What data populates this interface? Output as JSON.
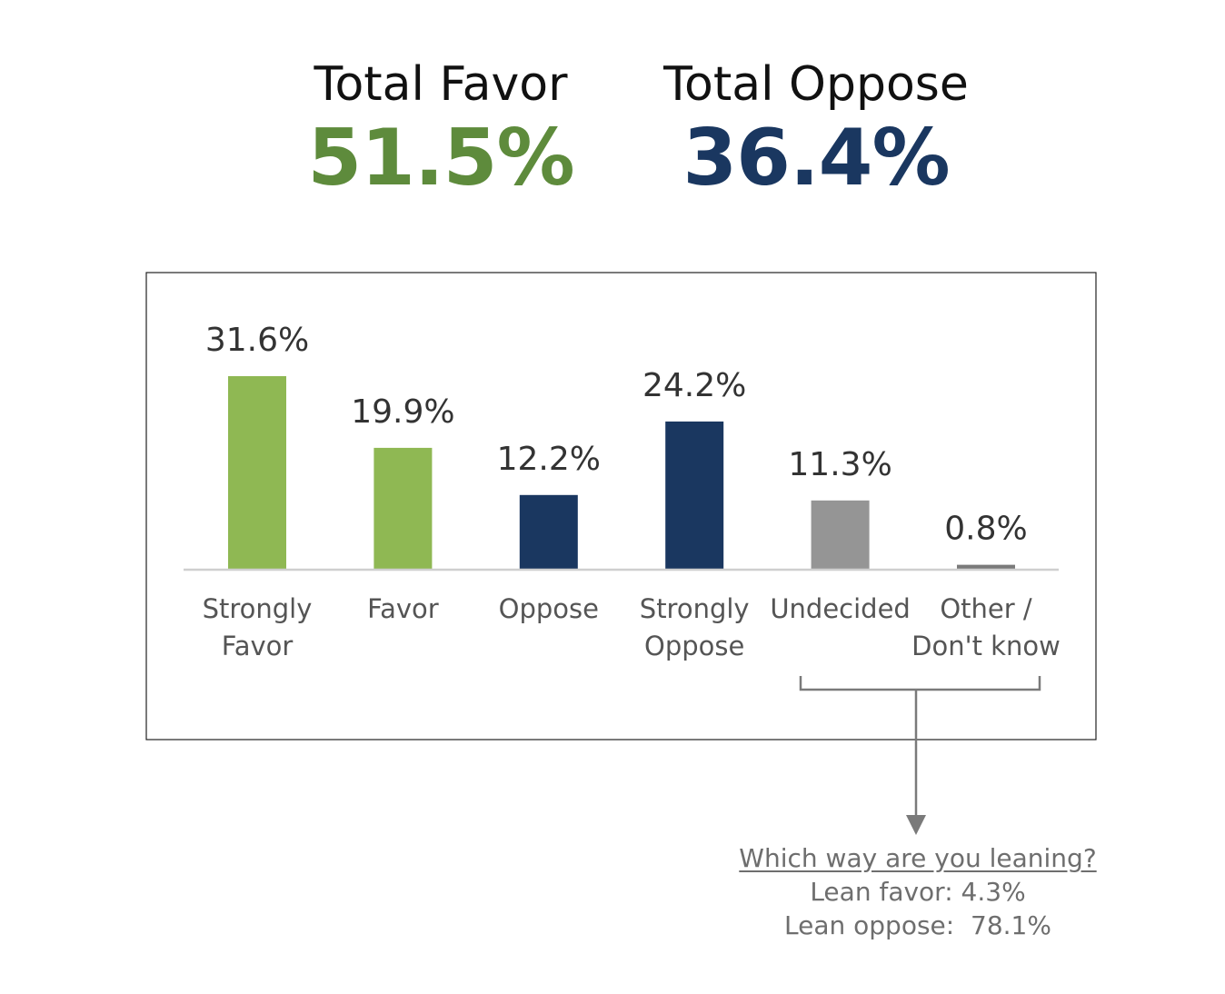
{
  "summary": {
    "favor_title": "Total Favor",
    "favor_value": "51.5%",
    "oppose_title": "Total Oppose",
    "oppose_value": "36.4%"
  },
  "colors": {
    "favor_dark": "#5e8b3c",
    "favor_bar": "#8fb853",
    "oppose": "#1a3760",
    "neutral": "#959595",
    "other": "#7a7a7a"
  },
  "chart_data": {
    "type": "bar",
    "title": "",
    "xlabel": "",
    "ylabel": "",
    "ylim": [
      0,
      31.6
    ],
    "grid": false,
    "categories": [
      [
        "Strongly",
        "Favor"
      ],
      [
        "Favor"
      ],
      [
        "Oppose"
      ],
      [
        "Strongly",
        "Oppose"
      ],
      [
        "Undecided"
      ],
      [
        "Other /",
        "Don't know"
      ]
    ],
    "values": [
      31.6,
      19.9,
      12.2,
      24.2,
      11.3,
      0.8
    ],
    "value_labels": [
      "31.6%",
      "19.9%",
      "12.2%",
      "24.2%",
      "11.3%",
      "0.8%"
    ],
    "bar_colors": [
      "#8fb853",
      "#8fb853",
      "#1a3760",
      "#1a3760",
      "#959595",
      "#7a7a7a"
    ]
  },
  "leaning": {
    "question": "Which way are you leaning?",
    "lean_favor": "Lean favor: 4.3%",
    "lean_oppose": "Lean oppose:  78.1%"
  }
}
